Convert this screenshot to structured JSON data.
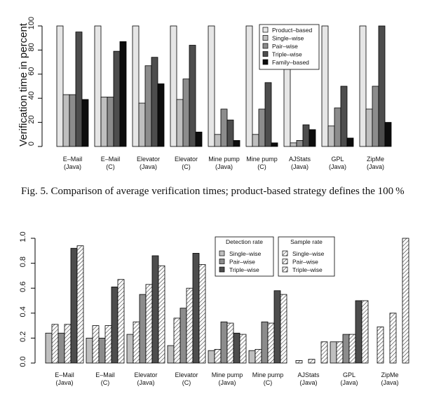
{
  "chart_data": [
    {
      "type": "bar",
      "ylabel": "Verification time in percent",
      "ylim": [
        0,
        100
      ],
      "yticks": [
        0,
        20,
        40,
        60,
        80,
        100
      ],
      "categories": [
        [
          "E–Mail",
          "(Java)"
        ],
        [
          "E–Mail",
          "(C)"
        ],
        [
          "Elevator",
          "(Java)"
        ],
        [
          "Elevator",
          "(C)"
        ],
        [
          "Mine pump",
          "(Java)"
        ],
        [
          "Mine pump",
          "(C)"
        ],
        [
          "AJStats",
          "(Java)"
        ],
        [
          "GPL",
          "(Java)"
        ],
        [
          "ZipMe",
          "(Java)"
        ]
      ],
      "legend_position": "top-right",
      "series": [
        {
          "name": "Product–based",
          "color": "#e6e6e6",
          "values": [
            100,
            100,
            100,
            100,
            100,
            100,
            100,
            100,
            100
          ]
        },
        {
          "name": "Single–wise",
          "color": "#bfbfbf",
          "values": [
            43,
            41,
            36,
            39,
            10,
            10,
            3,
            17,
            31
          ]
        },
        {
          "name": "Pair–wise",
          "color": "#8c8c8c",
          "values": [
            43,
            41,
            67,
            56,
            31,
            31,
            5,
            32,
            50
          ]
        },
        {
          "name": "Triple–wise",
          "color": "#4d4d4d",
          "values": [
            95,
            79,
            74,
            84,
            22,
            53,
            18,
            50,
            100
          ]
        },
        {
          "name": "Family–based",
          "color": "#0d0d0d",
          "values": [
            39,
            87,
            52,
            12,
            5,
            3,
            14,
            7,
            20
          ]
        }
      ]
    },
    {
      "type": "bar",
      "ylim": [
        0,
        1
      ],
      "yticks": [
        "0.0",
        "0.2",
        "0.4",
        "0.6",
        "0.8",
        "1.0"
      ],
      "categories": [
        [
          "E–Mail",
          "(Java)"
        ],
        [
          "E–Mail",
          "(C)"
        ],
        [
          "Elevator",
          "(Java)"
        ],
        [
          "Elevator",
          "(C)"
        ],
        [
          "Mine pump",
          "(Java)"
        ],
        [
          "Mine pump",
          "(C)"
        ],
        [
          "AJStats",
          "(Java)"
        ],
        [
          "GPL",
          "(Java)"
        ],
        [
          "ZipMe",
          "(Java)"
        ]
      ],
      "legend_groups": [
        {
          "title": "Detection rate",
          "entries": [
            "Single–wise",
            "Pair–wise",
            "Triple–wise"
          ]
        },
        {
          "title": "Sample rate",
          "entries": [
            "Single–wise",
            "Pair–wise",
            "Triple–wise"
          ]
        }
      ],
      "series": [
        {
          "group": "Detection rate",
          "name": "Single–wise",
          "color": "#bfbfbf",
          "hatched": false,
          "values": [
            0.24,
            0.2,
            0.23,
            0.14,
            0.1,
            0.1,
            null,
            0.17,
            null
          ]
        },
        {
          "group": "Sample rate",
          "name": "Single–wise",
          "color": "#ffffff",
          "hatched": true,
          "values": [
            0.31,
            0.3,
            0.33,
            0.36,
            0.11,
            0.11,
            0.02,
            0.17,
            0.29
          ]
        },
        {
          "group": "Detection rate",
          "name": "Pair–wise",
          "color": "#8c8c8c",
          "hatched": false,
          "values": [
            0.24,
            0.2,
            0.55,
            0.44,
            0.33,
            0.33,
            null,
            0.23,
            null
          ]
        },
        {
          "group": "Sample rate",
          "name": "Pair–wise",
          "color": "#ffffff",
          "hatched": true,
          "values": [
            0.31,
            0.3,
            0.63,
            0.6,
            0.32,
            0.32,
            0.03,
            0.23,
            0.4
          ]
        },
        {
          "group": "Detection rate",
          "name": "Triple–wise",
          "color": "#4d4d4d",
          "hatched": false,
          "values": [
            0.92,
            0.61,
            0.86,
            0.88,
            0.24,
            0.58,
            null,
            0.5,
            null
          ]
        },
        {
          "group": "Sample rate",
          "name": "Triple–wise",
          "color": "#ffffff",
          "hatched": true,
          "values": [
            0.94,
            0.67,
            0.78,
            0.79,
            0.23,
            0.55,
            0.17,
            0.5,
            1.0
          ]
        }
      ]
    }
  ],
  "caption": "Fig. 5.  Comparison of average verification times; product-based strategy defines the 100 %"
}
